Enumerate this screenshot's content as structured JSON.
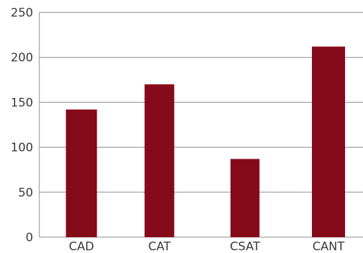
{
  "chart_data": {
    "type": "bar",
    "categories": [
      "CAD",
      "CAT",
      "CSAT",
      "CANT"
    ],
    "values": [
      142,
      170,
      87,
      212
    ],
    "ylim": [
      0,
      250
    ],
    "yticks": [
      0,
      50,
      100,
      150,
      200,
      250
    ],
    "grid": true,
    "legend": "none",
    "colors": {
      "bar": "#850b1a",
      "grid": "#888888",
      "axis": "#888888"
    }
  }
}
